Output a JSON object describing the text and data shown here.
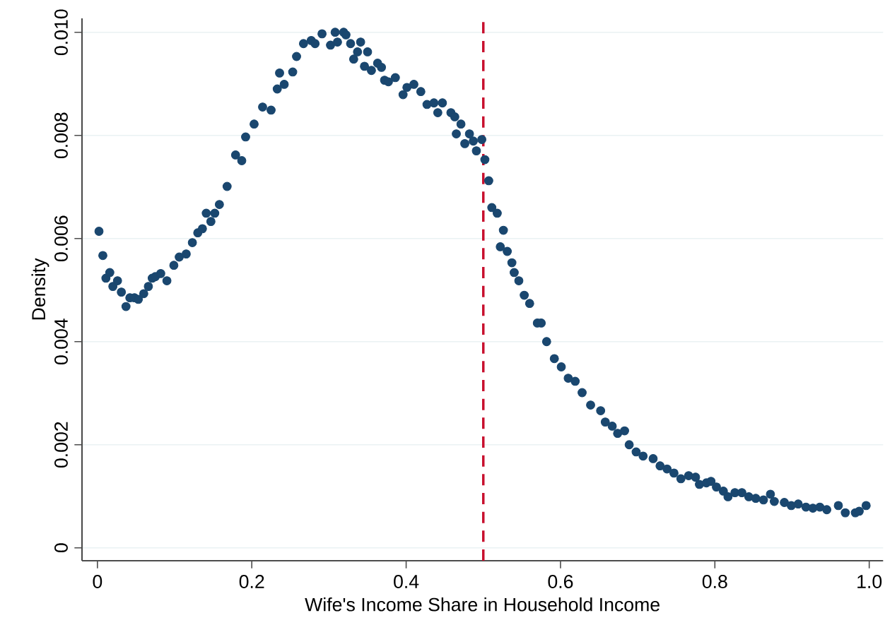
{
  "chart_data": {
    "type": "scatter",
    "xlabel": "Wife's Income Share in Household Income",
    "ylabel": "Density",
    "xlim": [
      -0.02,
      1.018
    ],
    "ylim": [
      -0.00025,
      0.01027
    ],
    "xticks": [
      {
        "value": 0,
        "label": "0"
      },
      0.2,
      0.4,
      0.6,
      0.8,
      {
        "value": 1.0,
        "label": "1.0"
      }
    ],
    "yticks": [
      {
        "value": 0,
        "label": "0"
      },
      0.002,
      0.004,
      0.006,
      0.008,
      {
        "value": 0.01,
        "label": "0.010"
      }
    ],
    "grid": "y",
    "marker": "circle",
    "ref_lines": [
      {
        "axis": "x",
        "value": 0.5,
        "color": "#c8102e",
        "line_style": "dashed"
      }
    ],
    "series": [
      {
        "color": "#1a476f",
        "x": [
          0.002,
          0.007,
          0.011,
          0.016,
          0.02,
          0.026,
          0.031,
          0.037,
          0.042,
          0.048,
          0.053,
          0.06,
          0.066,
          0.071,
          0.075,
          0.082,
          0.09,
          0.099,
          0.106,
          0.115,
          0.123,
          0.13,
          0.136,
          0.141,
          0.147,
          0.152,
          0.158,
          0.168,
          0.179,
          0.187,
          0.192,
          0.203,
          0.214,
          0.225,
          0.233,
          0.236,
          0.242,
          0.253,
          0.258,
          0.267,
          0.277,
          0.282,
          0.291,
          0.302,
          0.308,
          0.311,
          0.319,
          0.322,
          0.328,
          0.332,
          0.337,
          0.341,
          0.346,
          0.35,
          0.355,
          0.363,
          0.368,
          0.372,
          0.377,
          0.386,
          0.396,
          0.401,
          0.41,
          0.419,
          0.427,
          0.436,
          0.441,
          0.447,
          0.458,
          0.463,
          0.465,
          0.471,
          0.476,
          0.482,
          0.487,
          0.491,
          0.498,
          0.502,
          0.507,
          0.511,
          0.518,
          0.522,
          0.526,
          0.531,
          0.537,
          0.54,
          0.546,
          0.553,
          0.56,
          0.57,
          0.575,
          0.582,
          0.592,
          0.601,
          0.61,
          0.619,
          0.628,
          0.639,
          0.652,
          0.658,
          0.667,
          0.674,
          0.683,
          0.689,
          0.698,
          0.707,
          0.72,
          0.729,
          0.738,
          0.747,
          0.756,
          0.766,
          0.775,
          0.78,
          0.789,
          0.795,
          0.802,
          0.811,
          0.817,
          0.826,
          0.835,
          0.844,
          0.853,
          0.863,
          0.872,
          0.877,
          0.89,
          0.899,
          0.908,
          0.918,
          0.927,
          0.936,
          0.945,
          0.96,
          0.969,
          0.982,
          0.987,
          0.996
        ],
        "values": [
          0.00614,
          0.00567,
          0.00523,
          0.00534,
          0.00507,
          0.00518,
          0.00496,
          0.00468,
          0.00485,
          0.00485,
          0.00482,
          0.00493,
          0.00507,
          0.00523,
          0.00526,
          0.00532,
          0.00518,
          0.00548,
          0.00564,
          0.0057,
          0.00592,
          0.00611,
          0.00619,
          0.00649,
          0.00633,
          0.00649,
          0.00666,
          0.00701,
          0.00762,
          0.00751,
          0.00797,
          0.00822,
          0.00855,
          0.00849,
          0.0089,
          0.00921,
          0.00899,
          0.00923,
          0.00953,
          0.00978,
          0.00984,
          0.00978,
          0.00997,
          0.00975,
          0.01,
          0.00981,
          0.01,
          0.00995,
          0.00978,
          0.00948,
          0.00962,
          0.00981,
          0.00934,
          0.00962,
          0.00926,
          0.0094,
          0.00932,
          0.00907,
          0.00904,
          0.00912,
          0.00879,
          0.00893,
          0.00899,
          0.00885,
          0.0086,
          0.00863,
          0.00844,
          0.00863,
          0.00844,
          0.00836,
          0.00803,
          0.00822,
          0.00784,
          0.00803,
          0.00789,
          0.0077,
          0.00792,
          0.00753,
          0.00712,
          0.0066,
          0.00649,
          0.00584,
          0.00616,
          0.00575,
          0.00553,
          0.00534,
          0.00518,
          0.0049,
          0.00474,
          0.00436,
          0.00436,
          0.004,
          0.00367,
          0.00351,
          0.00329,
          0.00323,
          0.00301,
          0.00277,
          0.00266,
          0.00244,
          0.00236,
          0.00222,
          0.00227,
          0.002,
          0.00186,
          0.00178,
          0.00173,
          0.00159,
          0.00153,
          0.00145,
          0.00134,
          0.0014,
          0.00137,
          0.00123,
          0.00126,
          0.00129,
          0.00118,
          0.0011,
          0.00099,
          0.00107,
          0.00107,
          0.00099,
          0.00096,
          0.00093,
          0.00104,
          0.0009,
          0.00088,
          0.00082,
          0.00085,
          0.00079,
          0.00077,
          0.00079,
          0.00074,
          0.00082,
          0.00068,
          0.00068,
          0.00071,
          0.00082
        ]
      }
    ]
  }
}
